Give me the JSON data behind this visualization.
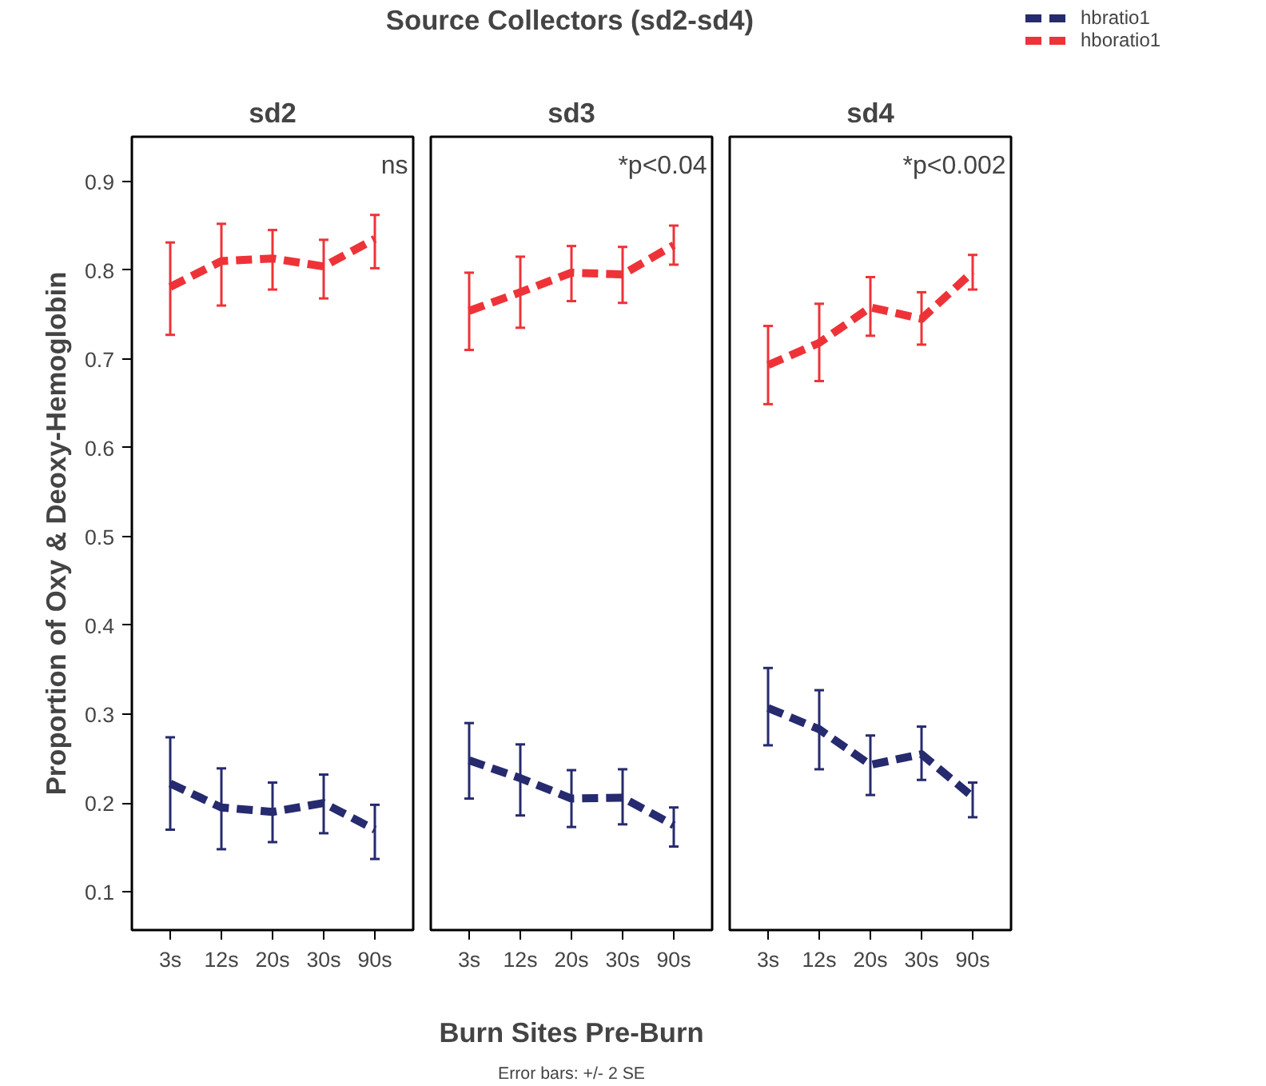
{
  "chart_data": [
    {
      "type": "line",
      "title": "sd2",
      "ylabel": "Proportion of Oxy & Deoxy-Hemoglobin",
      "categories": [
        "3s",
        "12s",
        "20s",
        "30s",
        "90s"
      ],
      "ylim": [
        0.057,
        0.95
      ],
      "yticks": [
        0.1,
        0.2,
        0.3,
        0.4,
        0.5,
        0.6,
        0.7,
        0.8,
        0.9
      ],
      "grid": false,
      "line_style": "dashed",
      "legend": "top right",
      "annotations": [
        "ns"
      ],
      "series": [
        {
          "name": "hbratio1",
          "color": "#262a6e",
          "values": [
            0.222,
            0.195,
            0.19,
            0.2,
            0.17
          ],
          "errors": [
            [
              0.17,
              0.274
            ],
            [
              0.148,
              0.239
            ],
            [
              0.156,
              0.223
            ],
            [
              0.166,
              0.232
            ],
            [
              0.137,
              0.198
            ]
          ]
        },
        {
          "name": "hboratio1",
          "color": "#ee3338",
          "values": [
            0.781,
            0.81,
            0.813,
            0.804,
            0.835
          ],
          "errors": [
            [
              0.727,
              0.831
            ],
            [
              0.76,
              0.852
            ],
            [
              0.778,
              0.845
            ],
            [
              0.768,
              0.834
            ],
            [
              0.802,
              0.862
            ]
          ]
        }
      ]
    },
    {
      "type": "line",
      "title": "sd3",
      "xlabel": "Burn Sites Pre-Burn",
      "categories": [
        "3s",
        "12s",
        "20s",
        "30s",
        "90s"
      ],
      "ylim": [
        0.057,
        0.95
      ],
      "yticks": [
        0.1,
        0.2,
        0.3,
        0.4,
        0.5,
        0.6,
        0.7,
        0.8,
        0.9
      ],
      "tick_labels": "x",
      "grid": false,
      "line_style": "dashed",
      "annotations": [
        "*p<0.04",
        "Source Collectors (sd2-sd4)",
        "Error bars: +/- 2 SE"
      ],
      "series": [
        {
          "color": "#262a6e",
          "values": [
            0.248,
            0.228,
            0.205,
            0.206,
            0.175
          ],
          "errors": [
            [
              0.205,
              0.29
            ],
            [
              0.186,
              0.266
            ],
            [
              0.173,
              0.237
            ],
            [
              0.176,
              0.238
            ],
            [
              0.151,
              0.195
            ]
          ]
        },
        {
          "color": "#ee3338",
          "values": [
            0.754,
            0.775,
            0.797,
            0.795,
            0.828
          ],
          "errors": [
            [
              0.71,
              0.797
            ],
            [
              0.735,
              0.815
            ],
            [
              0.765,
              0.827
            ],
            [
              0.763,
              0.826
            ],
            [
              0.806,
              0.85
            ]
          ]
        }
      ]
    },
    {
      "type": "line",
      "title": "sd4",
      "categories": [
        "3s",
        "12s",
        "20s",
        "30s",
        "90s"
      ],
      "ylim": [
        0.057,
        0.95
      ],
      "yticks": [
        0.1,
        0.2,
        0.3,
        0.4,
        0.5,
        0.6,
        0.7,
        0.8,
        0.9
      ],
      "tick_labels": "x",
      "grid": false,
      "line_style": "dashed",
      "annotations": [
        "*p<0.002"
      ],
      "series": [
        {
          "color": "#262a6e",
          "values": [
            0.307,
            0.283,
            0.243,
            0.255,
            0.207
          ],
          "errors": [
            [
              0.265,
              0.352
            ],
            [
              0.238,
              0.327
            ],
            [
              0.209,
              0.276
            ],
            [
              0.226,
              0.286
            ],
            [
              0.184,
              0.223
            ]
          ]
        },
        {
          "color": "#ee3338",
          "values": [
            0.693,
            0.718,
            0.758,
            0.745,
            0.798
          ],
          "errors": [
            [
              0.649,
              0.737
            ],
            [
              0.675,
              0.762
            ],
            [
              0.726,
              0.792
            ],
            [
              0.716,
              0.775
            ],
            [
              0.778,
              0.817
            ]
          ]
        }
      ]
    }
  ]
}
